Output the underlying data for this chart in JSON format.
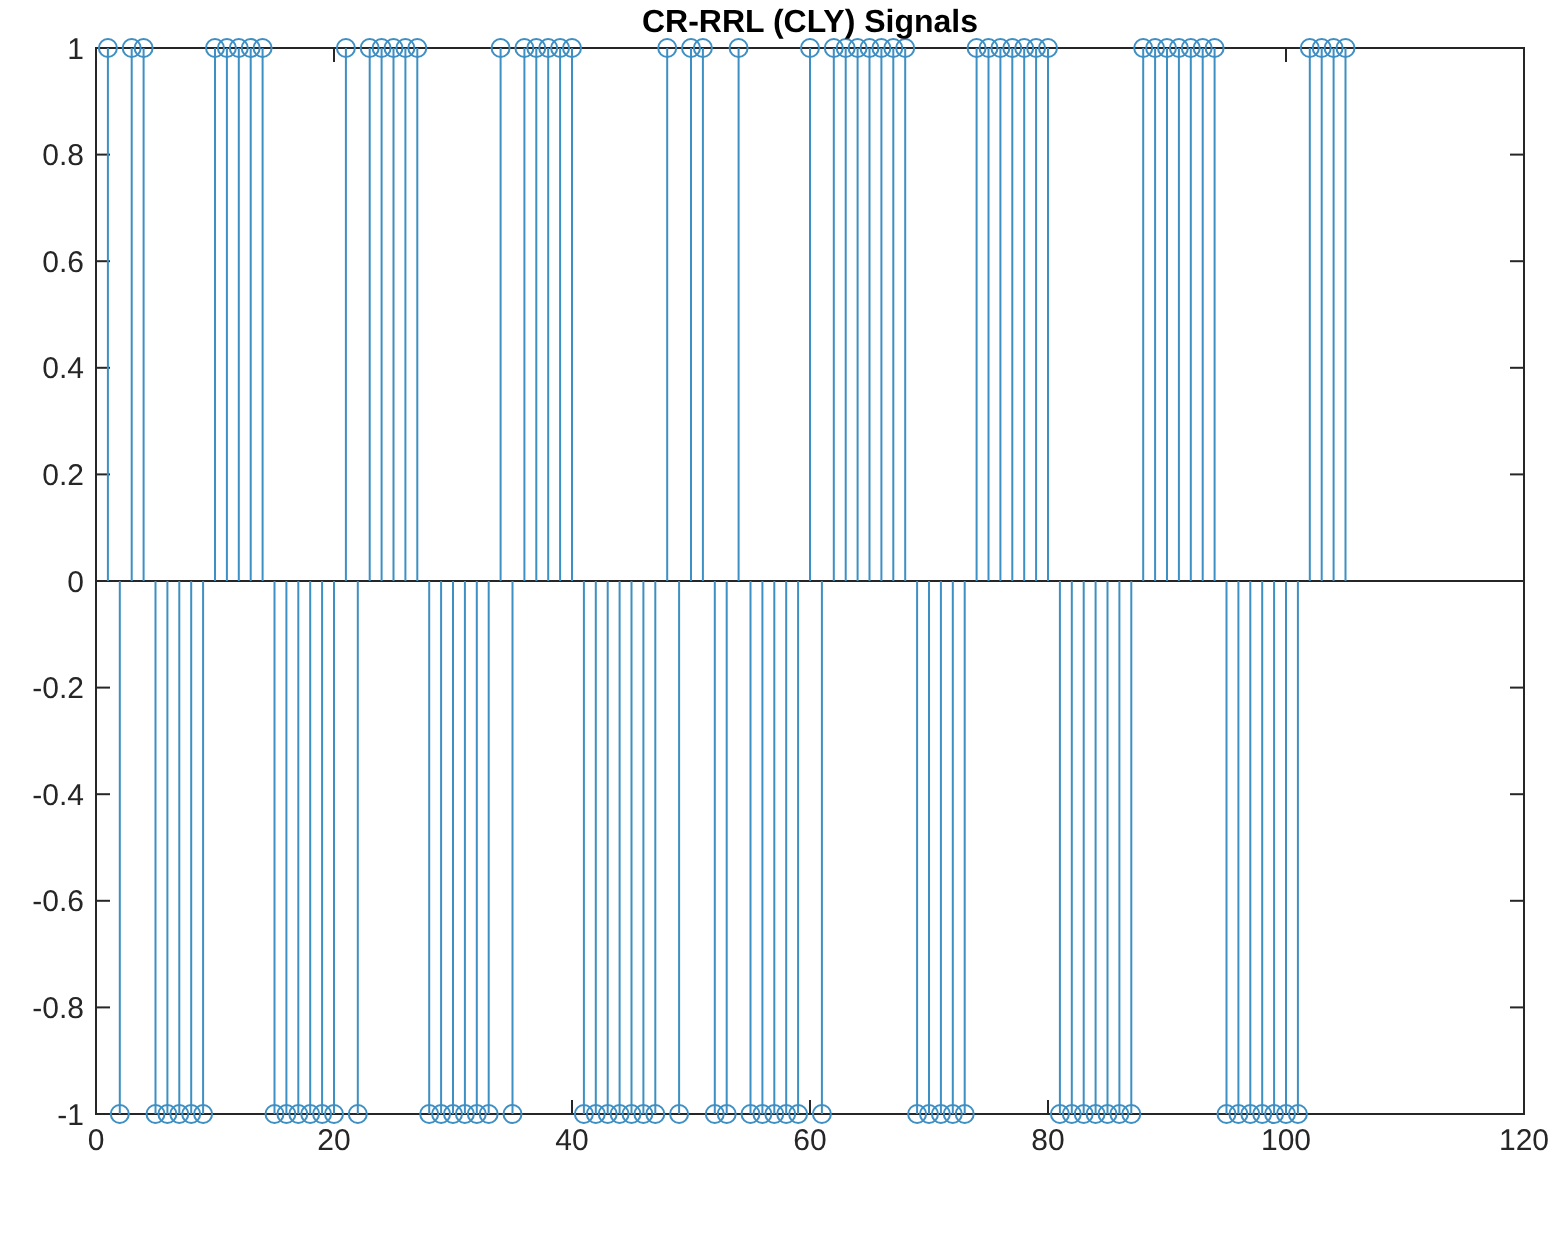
{
  "chart_data": {
    "type": "lollipop",
    "title": "CR-RRL (CLY) Signals",
    "x": [
      1,
      2,
      3,
      4,
      5,
      6,
      7,
      8,
      9,
      10,
      11,
      12,
      13,
      14,
      15,
      16,
      17,
      18,
      19,
      20,
      21,
      22,
      23,
      24,
      25,
      26,
      27,
      28,
      29,
      30,
      31,
      32,
      33,
      34,
      35,
      36,
      37,
      38,
      39,
      40,
      41,
      42,
      43,
      44,
      45,
      46,
      47,
      48,
      49,
      50,
      51,
      52,
      53,
      54,
      55,
      56,
      57,
      58,
      59,
      60,
      61,
      62,
      63,
      64,
      65,
      66,
      67,
      68,
      69,
      70,
      71,
      72,
      73,
      74,
      75,
      76,
      77,
      78,
      79,
      80,
      81,
      82,
      83,
      84,
      85,
      86,
      87,
      88,
      89,
      90,
      91,
      92,
      93,
      94,
      95,
      96,
      97,
      98,
      99,
      100,
      101,
      102,
      103,
      104,
      105
    ],
    "values": [
      1,
      -1,
      1,
      1,
      -1,
      -1,
      -1,
      -1,
      -1,
      1,
      1,
      1,
      1,
      1,
      -1,
      -1,
      -1,
      -1,
      -1,
      -1,
      1,
      -1,
      1,
      1,
      1,
      1,
      1,
      -1,
      -1,
      -1,
      -1,
      -1,
      -1,
      1,
      -1,
      1,
      1,
      1,
      1,
      1,
      -1,
      -1,
      -1,
      -1,
      -1,
      -1,
      -1,
      1,
      -1,
      1,
      1,
      -1,
      -1,
      1,
      -1,
      -1,
      -1,
      -1,
      -1,
      1,
      -1,
      1,
      1,
      1,
      1,
      1,
      1,
      1,
      -1,
      -1,
      -1,
      -1,
      -1,
      1,
      1,
      1,
      1,
      1,
      1,
      1,
      -1,
      -1,
      -1,
      -1,
      -1,
      -1,
      -1,
      1,
      1,
      1,
      1,
      1,
      1,
      1,
      -1,
      -1,
      -1,
      -1,
      -1,
      -1,
      -1,
      1,
      1,
      1,
      1
    ],
    "color": "#3d8fc4",
    "marker": "circle",
    "xlim": [
      0,
      120
    ],
    "xticks": [
      0,
      20,
      40,
      60,
      80,
      100,
      120
    ],
    "ylim": [
      -1,
      1
    ],
    "yticks": [
      -1,
      -0.8,
      -0.6,
      -0.4,
      -0.2,
      0,
      0.2,
      0.4,
      0.6,
      0.8,
      1
    ]
  }
}
